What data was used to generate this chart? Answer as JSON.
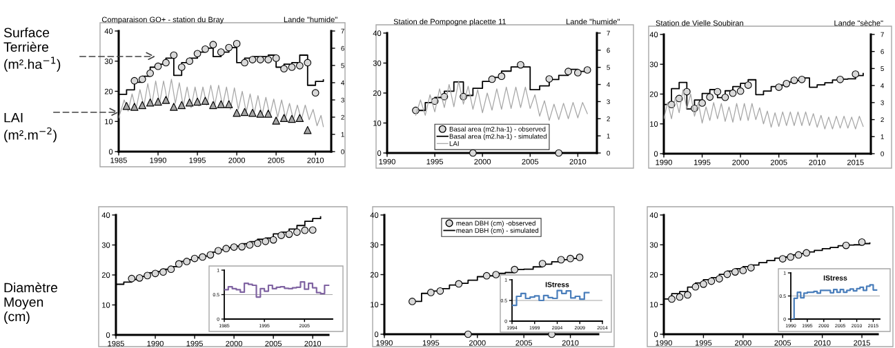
{
  "chart_data": [
    {
      "type": "line",
      "title": "Comparaison GO+ - station du Bray",
      "subtitle": "Lande \"humide\"",
      "xlim": [
        1985,
        2012
      ],
      "xticks": [
        1985,
        1990,
        1995,
        2000,
        2005,
        2010
      ],
      "ylim": [
        0,
        40
      ],
      "yticks": [
        0,
        10,
        20,
        30,
        40
      ],
      "y2lim": [
        0,
        7
      ],
      "y2ticks": [
        0,
        1,
        2,
        3,
        4,
        5,
        6,
        7
      ],
      "annotations": [
        "Surface\nTerrière\n(m².ha$^{−1}$)",
        "LAI\n(m².m$^{−2}$)"
      ],
      "series": [
        {
          "type": "line",
          "axis": "y2",
          "color": "#a6a6a6",
          "x": [
            1985.0,
            1985.7,
            1986.2,
            1986.7,
            1987.2,
            1987.7,
            1988.2,
            1988.7,
            1989.2,
            1989.7,
            1990.2,
            1990.7,
            1991.2,
            1991.7,
            1992.2,
            1992.7,
            1993.2,
            1993.7,
            1994.2,
            1994.7,
            1995.2,
            1995.7,
            1996.2,
            1996.7,
            1997.2,
            1997.7,
            1998.2,
            1998.7,
            1999.2,
            1999.7,
            2000.2,
            2000.7,
            2001.2,
            2001.7,
            2002.2,
            2002.7,
            2003.2,
            2003.7,
            2004.2,
            2004.7,
            2005.2,
            2005.7,
            2006.2,
            2006.7,
            2007.2,
            2007.7,
            2008.2,
            2008.7,
            2009.2,
            2009.7,
            2010.2,
            2010.7,
            2011.0
          ],
          "values": [
            1.95,
            3.0,
            2.35,
            3.35,
            2.45,
            3.6,
            2.65,
            3.95,
            2.7,
            4.1,
            2.8,
            4.1,
            2.9,
            4.2,
            2.8,
            4.0,
            2.65,
            3.75,
            2.55,
            3.75,
            2.65,
            3.75,
            2.7,
            3.85,
            2.7,
            3.85,
            2.65,
            3.75,
            2.45,
            3.7,
            2.45,
            3.5,
            2.3,
            3.35,
            2.2,
            3.25,
            2.1,
            3.15,
            2.1,
            3.05,
            2.0,
            3.0,
            1.95,
            2.8,
            1.85,
            2.7,
            1.85,
            2.7,
            1.85,
            2.45,
            1.5,
            2.1,
            1.45
          ]
        },
        {
          "type": "step",
          "color": "#000000",
          "x": [
            1985,
            1986,
            1987,
            1988,
            1989,
            1990,
            1991,
            1992,
            1993,
            1994,
            1995,
            1996,
            1997,
            1998,
            1999,
            2000,
            2001,
            2002,
            2003,
            2004,
            2005,
            2006,
            2007,
            2008,
            2009,
            2010,
            2011
          ],
          "values": [
            19,
            20.5,
            23,
            25,
            28,
            29,
            31,
            25.3,
            29.5,
            31,
            33,
            34.3,
            31.5,
            33,
            34.5,
            29.5,
            31,
            31.5,
            31.5,
            32,
            28,
            29,
            29.5,
            32,
            22,
            23.3,
            23.8
          ]
        },
        {
          "type": "scatter",
          "marker": "triangle",
          "axis": "y2",
          "color": "#a6a6a6",
          "x": [
            1986,
            1987,
            1988,
            1989,
            1990,
            1991,
            1992,
            1993,
            1994,
            1995,
            1996,
            1997,
            1998,
            1999,
            2000,
            2001,
            2002,
            2003,
            2004,
            2005,
            2006,
            2007,
            2008,
            2009
          ],
          "values": [
            2.65,
            2.6,
            2.7,
            2.85,
            2.9,
            3.0,
            2.6,
            2.7,
            2.85,
            2.9,
            2.95,
            2.7,
            2.75,
            2.75,
            2.25,
            2.3,
            2.25,
            2.2,
            2.2,
            1.8,
            1.95,
            1.9,
            1.95,
            1.25
          ]
        },
        {
          "type": "scatter",
          "marker": "circle",
          "color": "#d9d9d9",
          "x": [
            1987,
            1988,
            1989,
            1990,
            1991,
            1992,
            1993,
            1994,
            1995,
            1996,
            1997,
            1998,
            1999,
            2000,
            2001,
            2002,
            2003,
            2004,
            2005,
            2006,
            2007,
            2008,
            2009,
            2010
          ],
          "values": [
            23.5,
            24,
            26,
            28.3,
            29.5,
            32,
            28,
            30,
            32.5,
            34,
            35.5,
            33,
            34.5,
            35.8,
            29.5,
            30.5,
            30.5,
            30.5,
            31,
            27.5,
            28,
            28.5,
            29.5,
            19.5
          ]
        }
      ]
    },
    {
      "type": "line",
      "title": "Station de Pompogne placette 11",
      "subtitle": "Lande \"humide\"",
      "xlim": [
        1990,
        2012
      ],
      "xticks": [
        1990,
        1995,
        2000,
        2005,
        2010
      ],
      "ylim": [
        0,
        40
      ],
      "yticks": [
        0,
        10,
        20,
        30,
        40
      ],
      "y2lim": [
        0,
        7
      ],
      "y2ticks": [
        0,
        1,
        2,
        3,
        4,
        5,
        6,
        7
      ],
      "legend": "bottom",
      "series": [
        {
          "type": "scatter",
          "marker": "circle",
          "name": "Basal area (m2.ha-1) - observed",
          "color": "#d9d9d9",
          "x": [
            1993,
            1995,
            1996,
            1998,
            1999,
            2001,
            2002,
            2004,
            2007,
            2008,
            2009,
            2010,
            2011
          ],
          "values": [
            14.2,
            17.3,
            18.8,
            18.8,
            0,
            24.6,
            25.6,
            29.4,
            24.7,
            0,
            27.2,
            26.8,
            27.7
          ]
        },
        {
          "type": "step",
          "name": "Basal area (m2.ha-1) - simulated",
          "color": "#000000",
          "x": [
            1993,
            1994,
            1995,
            1996,
            1997,
            1998,
            1999,
            2000,
            2001,
            2002,
            2003,
            2004,
            2005,
            2006,
            2007,
            2008,
            2009,
            2010,
            2011
          ],
          "values": [
            14.2,
            16.8,
            18.5,
            20.6,
            23.7,
            19.2,
            21.6,
            23.9,
            25.2,
            27.3,
            28.7,
            28.7,
            21.1,
            22.4,
            24.5,
            25.9,
            27.9,
            27.2,
            27.3
          ]
        },
        {
          "type": "line",
          "axis": "y2",
          "name": "LAI",
          "color": "#a6a6a6",
          "x": [
            1993,
            1993.5,
            1994,
            1994.5,
            1995,
            1995.5,
            1996,
            1996.5,
            1997,
            1997.5,
            1998,
            1998.5,
            1999,
            1999.5,
            2000,
            2000.5,
            2001,
            2001.5,
            2002,
            2002.5,
            2003,
            2003.5,
            2004,
            2004.5,
            2005,
            2005.5,
            2006,
            2006.5,
            2007,
            2007.5,
            2008,
            2008.5,
            2009,
            2009.5,
            2010,
            2010.5,
            2011
          ],
          "values": [
            2.2,
            3.1,
            2.2,
            3.4,
            2.4,
            3.75,
            2.65,
            4.0,
            2.7,
            4.2,
            2.85,
            3.9,
            2.55,
            3.7,
            2.35,
            3.5,
            2.5,
            3.75,
            2.55,
            3.85,
            2.6,
            3.85,
            2.65,
            3.85,
            2.6,
            3.4,
            2.15,
            3.05,
            1.9,
            2.85,
            1.95,
            2.9,
            2.0,
            2.95,
            2.05,
            2.95,
            2.3
          ]
        }
      ]
    },
    {
      "type": "line",
      "title": "Station de Vielle Soubiran",
      "subtitle": "Lande \"sèche\"",
      "xlim": [
        1990,
        2017
      ],
      "xticks": [
        1990,
        1995,
        2000,
        2005,
        2010,
        2015
      ],
      "ylim": [
        0,
        40
      ],
      "yticks": [
        0,
        10,
        20,
        30,
        40
      ],
      "y2lim": [
        0,
        7
      ],
      "y2ticks": [
        0,
        1,
        2,
        3,
        4,
        5,
        6,
        7
      ],
      "series": [
        {
          "type": "line",
          "axis": "y2",
          "color": "#a6a6a6",
          "x": [
            1990,
            1990.5,
            1991,
            1991.5,
            1992,
            1992.5,
            1993,
            1993.5,
            1994,
            1994.5,
            1995,
            1995.5,
            1996,
            1996.5,
            1997,
            1997.5,
            1998,
            1998.5,
            1999,
            1999.5,
            2000,
            2000.5,
            2001,
            2001.5,
            2002,
            2002.5,
            2003,
            2003.5,
            2004,
            2004.5,
            2005,
            2005.5,
            2006,
            2006.5,
            2007,
            2007.5,
            2008,
            2008.5,
            2009,
            2009.5,
            2010,
            2010.5,
            2011,
            2011.5,
            2012,
            2012.5,
            2013,
            2013.5,
            2014,
            2014.5,
            2015,
            2015.5,
            2016
          ],
          "values": [
            2.05,
            3.0,
            2.05,
            3.3,
            2.4,
            3.75,
            2.65,
            3.5,
            2.2,
            3.0,
            1.8,
            2.75,
            1.95,
            3.0,
            2.05,
            2.95,
            1.9,
            2.75,
            1.85,
            2.95,
            1.95,
            2.95,
            1.95,
            2.95,
            2.0,
            2.7,
            1.75,
            2.5,
            1.55,
            2.4,
            1.6,
            2.45,
            1.65,
            2.45,
            1.65,
            2.45,
            1.65,
            2.45,
            1.65,
            2.35,
            1.55,
            2.25,
            1.45,
            2.15,
            1.45,
            2.2,
            1.5,
            2.2,
            1.5,
            2.15,
            1.45,
            2.2,
            1.6
          ]
        },
        {
          "type": "step",
          "color": "#000000",
          "x": [
            1990,
            1991,
            1992,
            1993,
            1994,
            1995,
            1996,
            1997,
            1998,
            1999,
            2000,
            2001,
            2002,
            2003,
            2004,
            2005,
            2006,
            2007,
            2008,
            2009,
            2010,
            2011,
            2012,
            2013,
            2014,
            2015,
            2016
          ],
          "values": [
            16.5,
            21.8,
            23.9,
            15,
            18,
            20.2,
            21.5,
            18.8,
            21.1,
            22.5,
            23.6,
            24.8,
            19.8,
            21,
            22.5,
            23,
            24,
            24.5,
            25.4,
            22.3,
            23.1,
            23.8,
            24.7,
            25,
            25.1,
            26.2,
            26.9
          ]
        },
        {
          "type": "scatter",
          "marker": "circle",
          "color": "#d9d9d9",
          "x": [
            1991,
            1992,
            1993,
            1994,
            1995,
            1996,
            1997,
            1998,
            1999,
            2000,
            2001,
            2005,
            2006,
            2007,
            2008,
            2013,
            2015
          ],
          "values": [
            16.5,
            18.5,
            20.8,
            15.2,
            17,
            19,
            20.8,
            18.9,
            20.3,
            21,
            23,
            22.3,
            23.5,
            24.6,
            24.9,
            24.9,
            26.7
          ]
        }
      ]
    },
    {
      "type": "line",
      "xlim": [
        1985,
        2012
      ],
      "xticks": [
        1985,
        1990,
        1995,
        2000,
        2005,
        2010
      ],
      "ylim": [
        0,
        40
      ],
      "yticks": [
        0,
        10,
        20,
        30,
        40
      ],
      "annotations": [
        "Diamètre\nMoyen\n(cm)"
      ],
      "series": [
        {
          "type": "step",
          "color": "#000000",
          "x": [
            1985,
            1986,
            1987,
            1988,
            1989,
            1990,
            1991,
            1992,
            1993,
            1994,
            1995,
            1996,
            1997,
            1998,
            1999,
            2000,
            2001,
            2002,
            2003,
            2004,
            2005,
            2006,
            2007,
            2008,
            2009,
            2010,
            2011
          ],
          "values": [
            16.9,
            17.6,
            18.5,
            19.5,
            20.7,
            21.1,
            21.9,
            22.8,
            24.5,
            25.1,
            25.8,
            26.3,
            27.6,
            28.4,
            29.1,
            29.6,
            30.4,
            31.1,
            31.9,
            32.3,
            33.7,
            34.3,
            35.3,
            36.5,
            37.9,
            38.8,
            39.4
          ]
        },
        {
          "type": "scatter",
          "marker": "circle",
          "color": "#d9d9d9",
          "x": [
            1987,
            1988,
            1989,
            1990,
            1991,
            1992,
            1993,
            1994,
            1995,
            1996,
            1997,
            1998,
            1999,
            2000,
            2001,
            2002,
            2003,
            2004,
            2005,
            2006,
            2007,
            2008,
            2009,
            2010
          ],
          "values": [
            18.8,
            19,
            19.8,
            20.5,
            21,
            21.9,
            23.7,
            24.5,
            25.5,
            26,
            26.7,
            28.1,
            28.8,
            29.3,
            29.4,
            30,
            30.6,
            31.2,
            31.7,
            33.2,
            33.6,
            34.3,
            34.9,
            35
          ]
        }
      ]
    },
    {
      "type": "step",
      "xlim": [
        1985,
        2012
      ],
      "xticks": [
        1985,
        1995,
        2005
      ],
      "ylim": [
        0,
        1
      ],
      "yticks": [
        0,
        0.5,
        1
      ],
      "ref_lines": [
        {
          "axis": "y",
          "value": 0.5,
          "color": "#a6a6a6"
        }
      ],
      "series": [
        {
          "color": "#8064a2",
          "x": [
            1985,
            1986,
            1987,
            1988,
            1989,
            1990,
            1991,
            1992,
            1993,
            1994,
            1995,
            1996,
            1997,
            1998,
            1999,
            2000,
            2001,
            2002,
            2003,
            2004,
            2005,
            2006,
            2007,
            2008,
            2009,
            2010,
            2011
          ],
          "values": [
            0.6,
            0.66,
            0.62,
            0.6,
            0.55,
            0.73,
            0.71,
            0.69,
            0.45,
            0.62,
            0.57,
            0.69,
            0.62,
            0.65,
            0.66,
            0.63,
            0.62,
            0.64,
            0.65,
            0.76,
            0.61,
            0.73,
            0.64,
            0.54,
            0.52,
            0.69,
            0.69
          ]
        }
      ]
    },
    {
      "type": "line",
      "xlim": [
        1990,
        2013
      ],
      "xticks": [
        1990,
        1995,
        2000,
        2005,
        2010
      ],
      "ylim": [
        0,
        40
      ],
      "yticks": [
        0,
        10,
        20,
        30,
        40
      ],
      "legend": "top",
      "series": [
        {
          "type": "scatter",
          "marker": "circle",
          "name": "mean DBH (cm) -observed",
          "color": "#d9d9d9",
          "x": [
            1993,
            1995,
            1996,
            1998,
            1999,
            2001,
            2002,
            2004,
            2007,
            2008,
            2009,
            2010,
            2011
          ],
          "values": [
            11,
            14,
            14.5,
            16.9,
            0,
            19.6,
            20,
            21.7,
            23.7,
            0,
            25,
            25.4,
            25.8
          ]
        },
        {
          "type": "step",
          "name": "mean DBH (cm) - simulated",
          "color": "#000000",
          "x": [
            1993,
            1994,
            1995,
            1996,
            1997,
            1998,
            1999,
            2000,
            2001,
            2002,
            2003,
            2004,
            2005,
            2006,
            2007,
            2008,
            2009,
            2010,
            2011
          ],
          "values": [
            11,
            13.7,
            14.5,
            15.3,
            16.5,
            17.1,
            18.1,
            19.3,
            19.6,
            20.4,
            20.7,
            21.7,
            21.8,
            22.6,
            23.5,
            24.3,
            25,
            25.4,
            25.8
          ]
        }
      ]
    },
    {
      "type": "step",
      "title": "IStress",
      "xlim": [
        1994,
        2014
      ],
      "xticks": [
        1994,
        1999,
        2004,
        2009,
        2014
      ],
      "ylim": [
        0,
        1
      ],
      "yticks": [
        0,
        0.5,
        1
      ],
      "ref_lines": [
        {
          "axis": "y",
          "value": 0.5,
          "color": "#a6a6a6"
        }
      ],
      "series": [
        {
          "color": "#4a7ebb",
          "x": [
            1994,
            1995,
            1996,
            1997,
            1998,
            1999,
            2000,
            2001,
            2002,
            2003,
            2004,
            2005,
            2006,
            2007,
            2008,
            2009,
            2010,
            2011
          ],
          "values": [
            0.38,
            0.6,
            0.67,
            0.55,
            0.58,
            0.61,
            0.5,
            0.62,
            0.57,
            0.55,
            0.74,
            0.67,
            0.73,
            0.56,
            0.6,
            0.53,
            0.69,
            0.69
          ]
        }
      ]
    },
    {
      "type": "line",
      "xlim": [
        1990,
        2017
      ],
      "xticks": [
        1990,
        1995,
        2000,
        2005,
        2010,
        2015
      ],
      "ylim": [
        0,
        40
      ],
      "yticks": [
        0,
        10,
        20,
        30,
        40
      ],
      "series": [
        {
          "type": "step",
          "color": "#000000",
          "x": [
            1990,
            1991,
            1992,
            1993,
            1994,
            1995,
            1996,
            1997,
            1998,
            1999,
            2000,
            2001,
            2002,
            2003,
            2004,
            2005,
            2006,
            2007,
            2008,
            2009,
            2010,
            2011,
            2012,
            2013,
            2014,
            2015,
            2016
          ],
          "values": [
            11.8,
            13.6,
            14.3,
            15.8,
            17.2,
            18.3,
            19.0,
            20.1,
            21.2,
            22.0,
            22.7,
            23.2,
            24.0,
            24.7,
            25.5,
            25.9,
            26.6,
            27.1,
            27.6,
            28.1,
            28.7,
            29.1,
            29.7,
            29.9,
            30.0,
            30.4,
            30.6
          ]
        },
        {
          "type": "scatter",
          "marker": "circle",
          "color": "#d9d9d9",
          "x": [
            1991,
            1992,
            1993,
            1994,
            1995,
            1996,
            1997,
            1998,
            1999,
            2000,
            2001,
            2005,
            2006,
            2007,
            2008,
            2013,
            2015
          ],
          "values": [
            11.8,
            12.5,
            13.2,
            15.9,
            16.8,
            17.8,
            18.6,
            20.1,
            20.9,
            21.4,
            22.3,
            25.3,
            25.9,
            26.6,
            27.3,
            29.8,
            30.9
          ]
        }
      ]
    },
    {
      "type": "step",
      "title": "IStress",
      "xlim": [
        1990,
        2017
      ],
      "xticks": [
        1990,
        1995,
        2000,
        2005,
        2010,
        2015
      ],
      "ylim": [
        0,
        1
      ],
      "yticks": [
        0,
        0.5,
        1
      ],
      "ref_lines": [
        {
          "axis": "y",
          "value": 0.5,
          "color": "#a6a6a6"
        }
      ],
      "series": [
        {
          "color": "#4a7ebb",
          "x": [
            1990,
            1991,
            1992,
            1993,
            1994,
            1995,
            1996,
            1997,
            1998,
            1999,
            2000,
            2001,
            2002,
            2003,
            2004,
            2005,
            2006,
            2007,
            2008,
            2009,
            2010,
            2011,
            2012,
            2013,
            2014,
            2015,
            2016
          ],
          "values": [
            0,
            0.45,
            0.58,
            0.46,
            0.56,
            0.58,
            0.58,
            0.6,
            0.56,
            0.62,
            0.62,
            0.62,
            0.57,
            0.64,
            0.58,
            0.64,
            0.58,
            0.62,
            0.65,
            0.61,
            0.66,
            0.69,
            0.62,
            0.71,
            0.74,
            0.63,
            0.63
          ]
        }
      ]
    }
  ]
}
